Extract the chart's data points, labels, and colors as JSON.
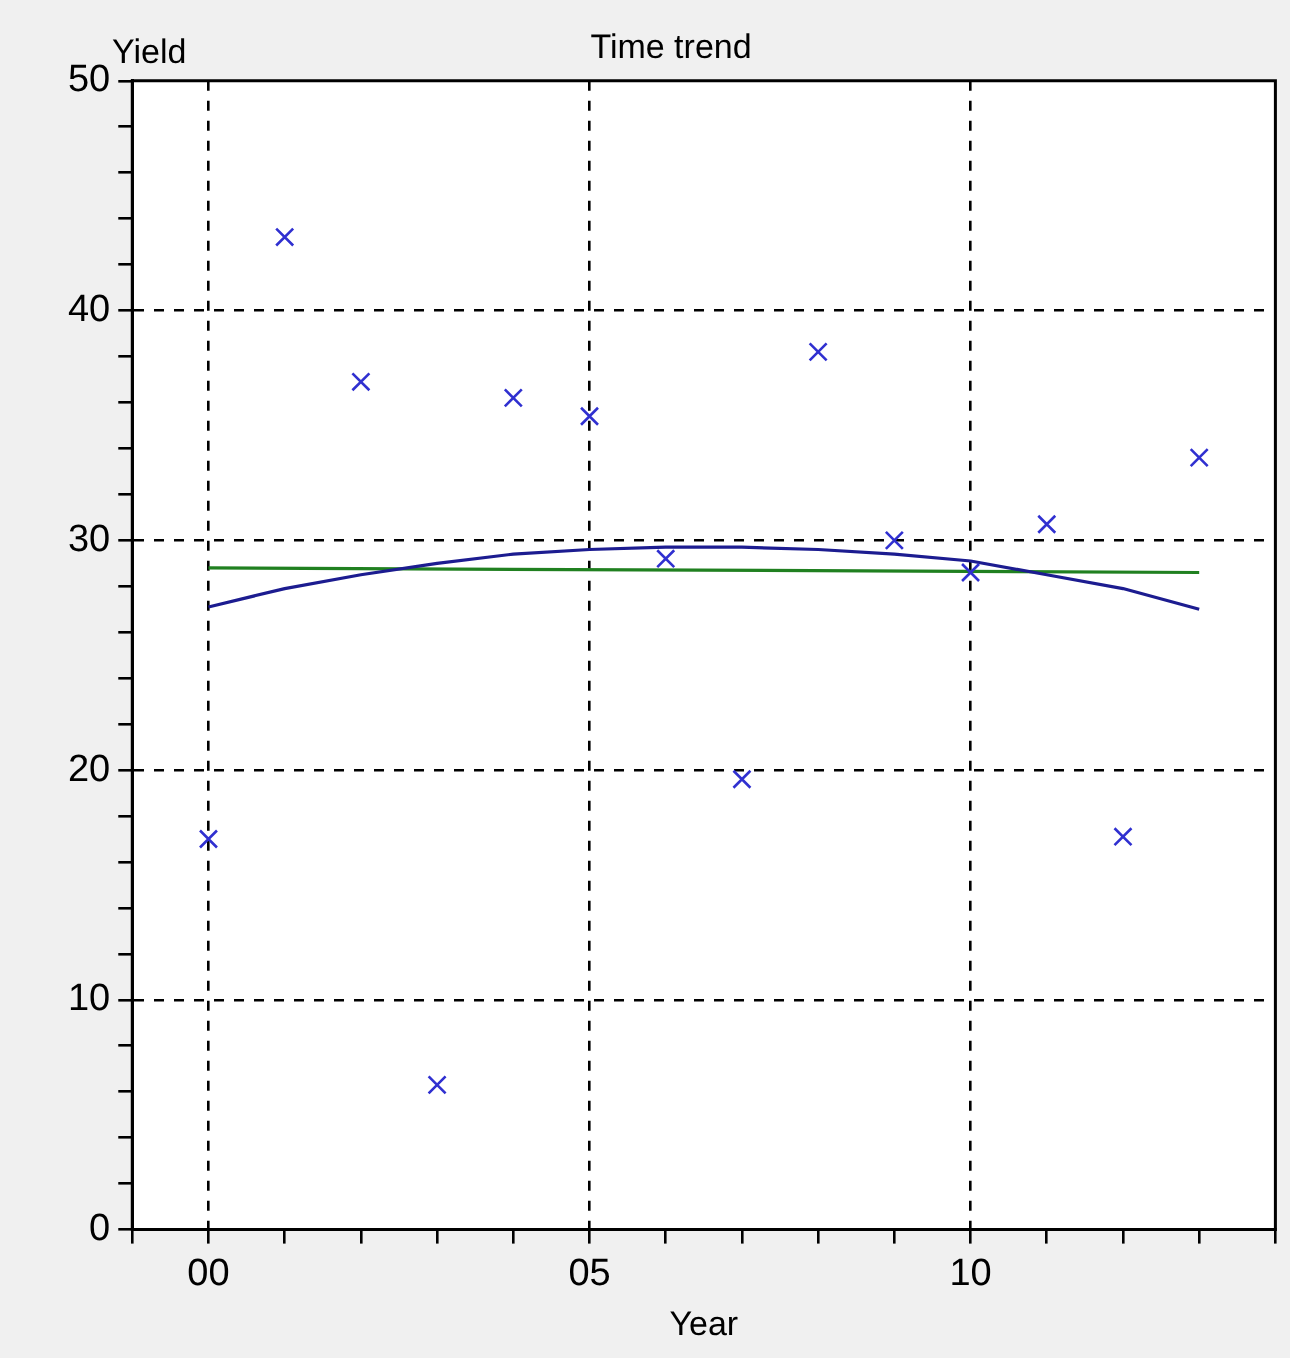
{
  "chart_data": {
    "type": "scatter",
    "title": "Time trend",
    "xlabel": "Year",
    "ylabel": "Yield",
    "x": [
      0,
      1,
      2,
      3,
      4,
      5,
      6,
      7,
      8,
      9,
      10,
      11,
      12,
      13
    ],
    "series": [
      {
        "type": "scatter",
        "color": "#3030d0",
        "marker": "cross",
        "values": [
          17.0,
          43.2,
          36.9,
          6.3,
          36.2,
          35.4,
          29.2,
          19.6,
          38.2,
          30.0,
          28.6,
          30.7,
          17.1,
          33.6
        ]
      },
      {
        "type": "line",
        "color": "#1c1c90",
        "marker": "none",
        "values": [
          27.1,
          27.9,
          28.5,
          29.0,
          29.4,
          29.6,
          29.7,
          29.7,
          29.6,
          29.4,
          29.1,
          28.5,
          27.9,
          27.0
        ]
      },
      {
        "type": "line",
        "color": "#208020",
        "marker": "none",
        "x": [
          0,
          13
        ],
        "values": [
          28.8,
          28.6
        ]
      }
    ],
    "xlim": [
      -1,
      14
    ],
    "xticks": [
      {
        "value": -1,
        "label": null
      },
      {
        "value": 0,
        "label": "00"
      },
      {
        "value": 1,
        "label": null
      },
      {
        "value": 2,
        "label": null
      },
      {
        "value": 3,
        "label": null
      },
      {
        "value": 4,
        "label": null
      },
      {
        "value": 5,
        "label": "05"
      },
      {
        "value": 6,
        "label": null
      },
      {
        "value": 7,
        "label": null
      },
      {
        "value": 8,
        "label": null
      },
      {
        "value": 9,
        "label": null
      },
      {
        "value": 10,
        "label": "10"
      },
      {
        "value": 11,
        "label": null
      },
      {
        "value": 12,
        "label": null
      },
      {
        "value": 13,
        "label": null
      },
      {
        "value": 14,
        "label": null
      }
    ],
    "ylim": [
      0,
      50
    ],
    "yticks": [
      0,
      {
        "value": 2,
        "label": null
      },
      {
        "value": 4,
        "label": null
      },
      {
        "value": 6,
        "label": null
      },
      {
        "value": 8,
        "label": null
      },
      10,
      {
        "value": 12,
        "label": null
      },
      {
        "value": 14,
        "label": null
      },
      {
        "value": 16,
        "label": null
      },
      {
        "value": 18,
        "label": null
      },
      20,
      {
        "value": 22,
        "label": null
      },
      {
        "value": 24,
        "label": null
      },
      {
        "value": 26,
        "label": null
      },
      {
        "value": 28,
        "label": null
      },
      30,
      {
        "value": 32,
        "label": null
      },
      {
        "value": 34,
        "label": null
      },
      {
        "value": 36,
        "label": null
      },
      {
        "value": 38,
        "label": null
      },
      40,
      {
        "value": 42,
        "label": null
      },
      {
        "value": 44,
        "label": null
      },
      {
        "value": 46,
        "label": null
      },
      {
        "value": 48,
        "label": null
      },
      50
    ],
    "grid": true,
    "legend": false,
    "line_style": "solid"
  }
}
